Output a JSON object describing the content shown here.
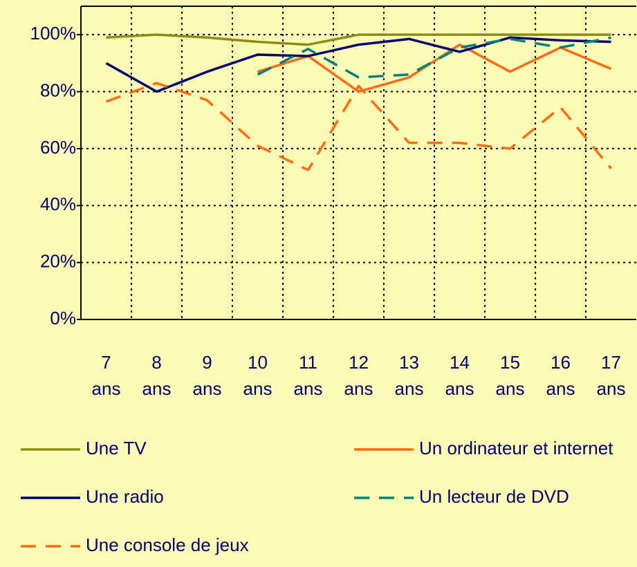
{
  "chart_data": {
    "type": "line",
    "categories": [
      "7 ans",
      "8 ans",
      "9 ans",
      "10 ans",
      "11 ans",
      "12 ans",
      "13 ans",
      "14 ans",
      "15 ans",
      "16 ans",
      "17 ans"
    ],
    "series": [
      {
        "name": "Une TV",
        "color": "#8c8c14",
        "style": "solid",
        "values": [
          99,
          100,
          99,
          97.5,
          96.5,
          100,
          100,
          100,
          100,
          100,
          100
        ]
      },
      {
        "name": "Un ordinateur et internet",
        "color": "#ff6a13",
        "style": "solid",
        "values": [
          null,
          null,
          null,
          87,
          92.5,
          80,
          85,
          96.5,
          87,
          95.5,
          88
        ]
      },
      {
        "name": "Une radio",
        "color": "#000070",
        "style": "solid",
        "values": [
          90,
          80,
          87,
          93,
          92.5,
          96.5,
          98.5,
          94,
          99,
          98,
          97.5
        ]
      },
      {
        "name": "Un lecteur de DVD",
        "color": "#00807a",
        "style": "dashed",
        "values": [
          null,
          null,
          null,
          86,
          95,
          85,
          86,
          95.5,
          98.5,
          95.5,
          99
        ]
      },
      {
        "name": "Une console de jeux",
        "color": "#ff6a13",
        "style": "dashed",
        "values": [
          76.5,
          83,
          77,
          61,
          52.5,
          82,
          62,
          62,
          60,
          74.5,
          53
        ]
      }
    ],
    "ylim": [
      0,
      110
    ],
    "yticks": [
      {
        "value": 0,
        "label": "0%"
      },
      {
        "value": 20,
        "label": "20%"
      },
      {
        "value": 40,
        "label": "40%"
      },
      {
        "value": 60,
        "label": "60%"
      },
      {
        "value": 80,
        "label": "80%"
      },
      {
        "value": 100,
        "label": "100%"
      }
    ],
    "grid": true
  }
}
